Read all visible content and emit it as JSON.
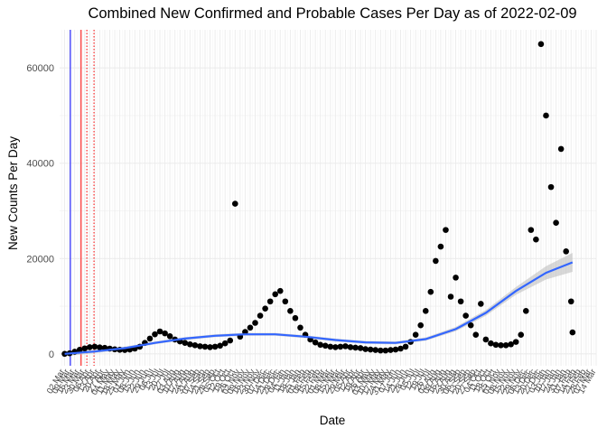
{
  "chart_data": {
    "type": "scatter",
    "title": "Combined New Confirmed and Probable Cases Per Day as of 2022-02-09",
    "xlabel": "Date",
    "ylabel": "New Counts Per Day",
    "xlim": [
      "2020-02-24",
      "2022-03-14"
    ],
    "ylim": [
      -2500,
      68000
    ],
    "y_ticks": [
      0,
      20000,
      40000,
      60000
    ],
    "y_tick_labels": [
      "0",
      "20000",
      "40000",
      "60000"
    ],
    "x_tick_labels": [
      "02 Mar",
      "09 Mar",
      "16 Mar",
      "23 Mar",
      "30 Mar",
      "06 Apr",
      "13 Apr",
      "20 Apr",
      "27 Apr",
      "04 May",
      "11 May",
      "18 May",
      "25 May",
      "01 Jun",
      "08 Jun",
      "15 Jun",
      "22 Jun",
      "29 Jun",
      "06 Jul",
      "13 Jul",
      "20 Jul",
      "27 Jul",
      "03 Aug",
      "10 Aug",
      "17 Aug",
      "24 Aug",
      "31 Aug",
      "07 Sep",
      "14 Sep",
      "21 Sep",
      "28 Sep",
      "05 Oct",
      "12 Oct",
      "19 Oct",
      "26 Oct",
      "02 Nov",
      "09 Nov",
      "16 Nov",
      "23 Nov",
      "30 Nov",
      "07 Dec",
      "14 Dec",
      "21 Dec",
      "28 Dec",
      "04 Jan",
      "11 Jan",
      "18 Jan",
      "25 Jan",
      "01 Feb",
      "08 Feb",
      "15 Feb",
      "22 Feb",
      "01 Mar",
      "08 Mar",
      "15 Mar",
      "22 Mar",
      "29 Mar",
      "05 Apr",
      "12 Apr",
      "19 Apr",
      "26 Apr",
      "03 May",
      "10 May",
      "17 May",
      "24 May",
      "31 May",
      "07 Jun",
      "14 Jun",
      "21 Jun",
      "28 Jun",
      "05 Jul",
      "12 Jul",
      "19 Jul",
      "26 Jul",
      "02 Aug",
      "09 Aug",
      "16 Aug",
      "23 Aug",
      "30 Aug",
      "06 Sep",
      "13 Sep",
      "20 Sep",
      "27 Sep",
      "04 Oct",
      "11 Oct",
      "18 Oct",
      "25 Oct",
      "01 Nov",
      "08 Nov",
      "15 Nov",
      "22 Nov",
      "29 Nov",
      "06 Dec",
      "13 Dec",
      "20 Dec",
      "27 Dec",
      "03 Jan",
      "10 Jan",
      "17 Jan",
      "24 Jan",
      "31 Jan",
      "07 Feb",
      "14 Feb",
      "21 Feb",
      "28 Feb",
      "07 Mar",
      "14 Mar"
    ],
    "series": [
      {
        "kind": "points",
        "color": "#000000",
        "data": [
          [
            "2020-03-02",
            0
          ],
          [
            "2020-03-09",
            120
          ],
          [
            "2020-03-16",
            450
          ],
          [
            "2020-03-23",
            850
          ],
          [
            "2020-03-30",
            1150
          ],
          [
            "2020-04-06",
            1400
          ],
          [
            "2020-04-13",
            1500
          ],
          [
            "2020-04-20",
            1350
          ],
          [
            "2020-04-27",
            1250
          ],
          [
            "2020-05-04",
            1100
          ],
          [
            "2020-05-11",
            950
          ],
          [
            "2020-05-18",
            850
          ],
          [
            "2020-05-25",
            800
          ],
          [
            "2020-06-01",
            900
          ],
          [
            "2020-06-08",
            1100
          ],
          [
            "2020-06-15",
            1500
          ],
          [
            "2020-06-22",
            2300
          ],
          [
            "2020-06-29",
            3200
          ],
          [
            "2020-07-06",
            4100
          ],
          [
            "2020-07-13",
            4700
          ],
          [
            "2020-07-20",
            4300
          ],
          [
            "2020-07-27",
            3700
          ],
          [
            "2020-08-03",
            3000
          ],
          [
            "2020-08-10",
            2600
          ],
          [
            "2020-08-17",
            2300
          ],
          [
            "2020-08-24",
            2000
          ],
          [
            "2020-08-31",
            1800
          ],
          [
            "2020-09-07",
            1600
          ],
          [
            "2020-09-14",
            1500
          ],
          [
            "2020-09-21",
            1400
          ],
          [
            "2020-09-28",
            1500
          ],
          [
            "2020-10-05",
            1700
          ],
          [
            "2020-10-12",
            2200
          ],
          [
            "2020-10-19",
            2800
          ],
          [
            "2020-10-26",
            31500
          ],
          [
            "2020-11-02",
            3600
          ],
          [
            "2020-11-09",
            4600
          ],
          [
            "2020-11-16",
            5500
          ],
          [
            "2020-11-23",
            6500
          ],
          [
            "2020-11-30",
            8000
          ],
          [
            "2020-12-07",
            9500
          ],
          [
            "2020-12-14",
            11000
          ],
          [
            "2020-12-21",
            12500
          ],
          [
            "2020-12-28",
            13200
          ],
          [
            "2021-01-04",
            11000
          ],
          [
            "2021-01-11",
            9000
          ],
          [
            "2021-01-18",
            7500
          ],
          [
            "2021-01-25",
            5500
          ],
          [
            "2021-02-01",
            4000
          ],
          [
            "2021-02-08",
            3000
          ],
          [
            "2021-02-15",
            2400
          ],
          [
            "2021-02-22",
            1900
          ],
          [
            "2021-03-01",
            1700
          ],
          [
            "2021-03-08",
            1500
          ],
          [
            "2021-03-15",
            1400
          ],
          [
            "2021-03-22",
            1500
          ],
          [
            "2021-03-29",
            1600
          ],
          [
            "2021-04-05",
            1400
          ],
          [
            "2021-04-12",
            1300
          ],
          [
            "2021-04-19",
            1200
          ],
          [
            "2021-04-26",
            1000
          ],
          [
            "2021-05-03",
            900
          ],
          [
            "2021-05-10",
            800
          ],
          [
            "2021-05-17",
            700
          ],
          [
            "2021-05-24",
            700
          ],
          [
            "2021-05-31",
            800
          ],
          [
            "2021-06-07",
            900
          ],
          [
            "2021-06-14",
            1100
          ],
          [
            "2021-06-21",
            1500
          ],
          [
            "2021-06-28",
            2500
          ],
          [
            "2021-07-05",
            4000
          ],
          [
            "2021-07-12",
            6000
          ],
          [
            "2021-07-19",
            9000
          ],
          [
            "2021-07-26",
            13000
          ],
          [
            "2021-08-02",
            19500
          ],
          [
            "2021-08-09",
            22500
          ],
          [
            "2021-08-16",
            26000
          ],
          [
            "2021-08-23",
            12000
          ],
          [
            "2021-08-30",
            16000
          ],
          [
            "2021-09-06",
            11000
          ],
          [
            "2021-09-13",
            8000
          ],
          [
            "2021-09-20",
            6000
          ],
          [
            "2021-09-27",
            4000
          ],
          [
            "2021-10-04",
            10500
          ],
          [
            "2021-10-11",
            3000
          ],
          [
            "2021-10-18",
            2200
          ],
          [
            "2021-10-25",
            1900
          ],
          [
            "2021-11-01",
            1800
          ],
          [
            "2021-11-08",
            1800
          ],
          [
            "2021-11-15",
            2000
          ],
          [
            "2021-11-22",
            2500
          ],
          [
            "2021-11-29",
            4000
          ],
          [
            "2021-12-06",
            9000
          ],
          [
            "2021-12-13",
            26000
          ],
          [
            "2021-12-20",
            24000
          ],
          [
            "2021-12-27",
            65000
          ],
          [
            "2022-01-03",
            50000
          ],
          [
            "2022-01-10",
            35000
          ],
          [
            "2022-01-17",
            27500
          ],
          [
            "2022-01-24",
            43000
          ],
          [
            "2022-01-31",
            21500
          ],
          [
            "2022-02-07",
            11000
          ],
          [
            "2022-02-09",
            4500
          ]
        ]
      },
      {
        "kind": "smooth",
        "color": "#3366ff",
        "band_color": "#bebebe",
        "data": [
          [
            "2020-03-02",
            0
          ],
          [
            "2020-04-13",
            500
          ],
          [
            "2020-05-25",
            1200
          ],
          [
            "2020-07-06",
            2300
          ],
          [
            "2020-08-17",
            3200
          ],
          [
            "2020-09-28",
            3800
          ],
          [
            "2020-11-09",
            4100
          ],
          [
            "2020-12-21",
            4100
          ],
          [
            "2021-02-01",
            3600
          ],
          [
            "2021-03-15",
            2900
          ],
          [
            "2021-04-26",
            2400
          ],
          [
            "2021-06-07",
            2300
          ],
          [
            "2021-07-19",
            3100
          ],
          [
            "2021-08-30",
            5200
          ],
          [
            "2021-10-11",
            8600
          ],
          [
            "2021-11-22",
            13200
          ],
          [
            "2022-01-03",
            17000
          ],
          [
            "2022-02-09",
            19200
          ]
        ],
        "band_halfwidth": [
          500,
          350,
          300,
          300,
          300,
          300,
          300,
          300,
          300,
          300,
          300,
          300,
          350,
          450,
          600,
          800,
          1400,
          2000
        ]
      }
    ],
    "reference_lines": [
      {
        "date": "2020-03-10",
        "color": "#0000ff",
        "style": "solid"
      },
      {
        "date": "2020-03-25",
        "color": "#ff0000",
        "style": "solid"
      },
      {
        "date": "2020-04-02",
        "color": "#ff0000",
        "style": "dotted"
      },
      {
        "date": "2020-04-12",
        "color": "#ff0000",
        "style": "dotted"
      }
    ],
    "grid": true,
    "legend": "none"
  }
}
